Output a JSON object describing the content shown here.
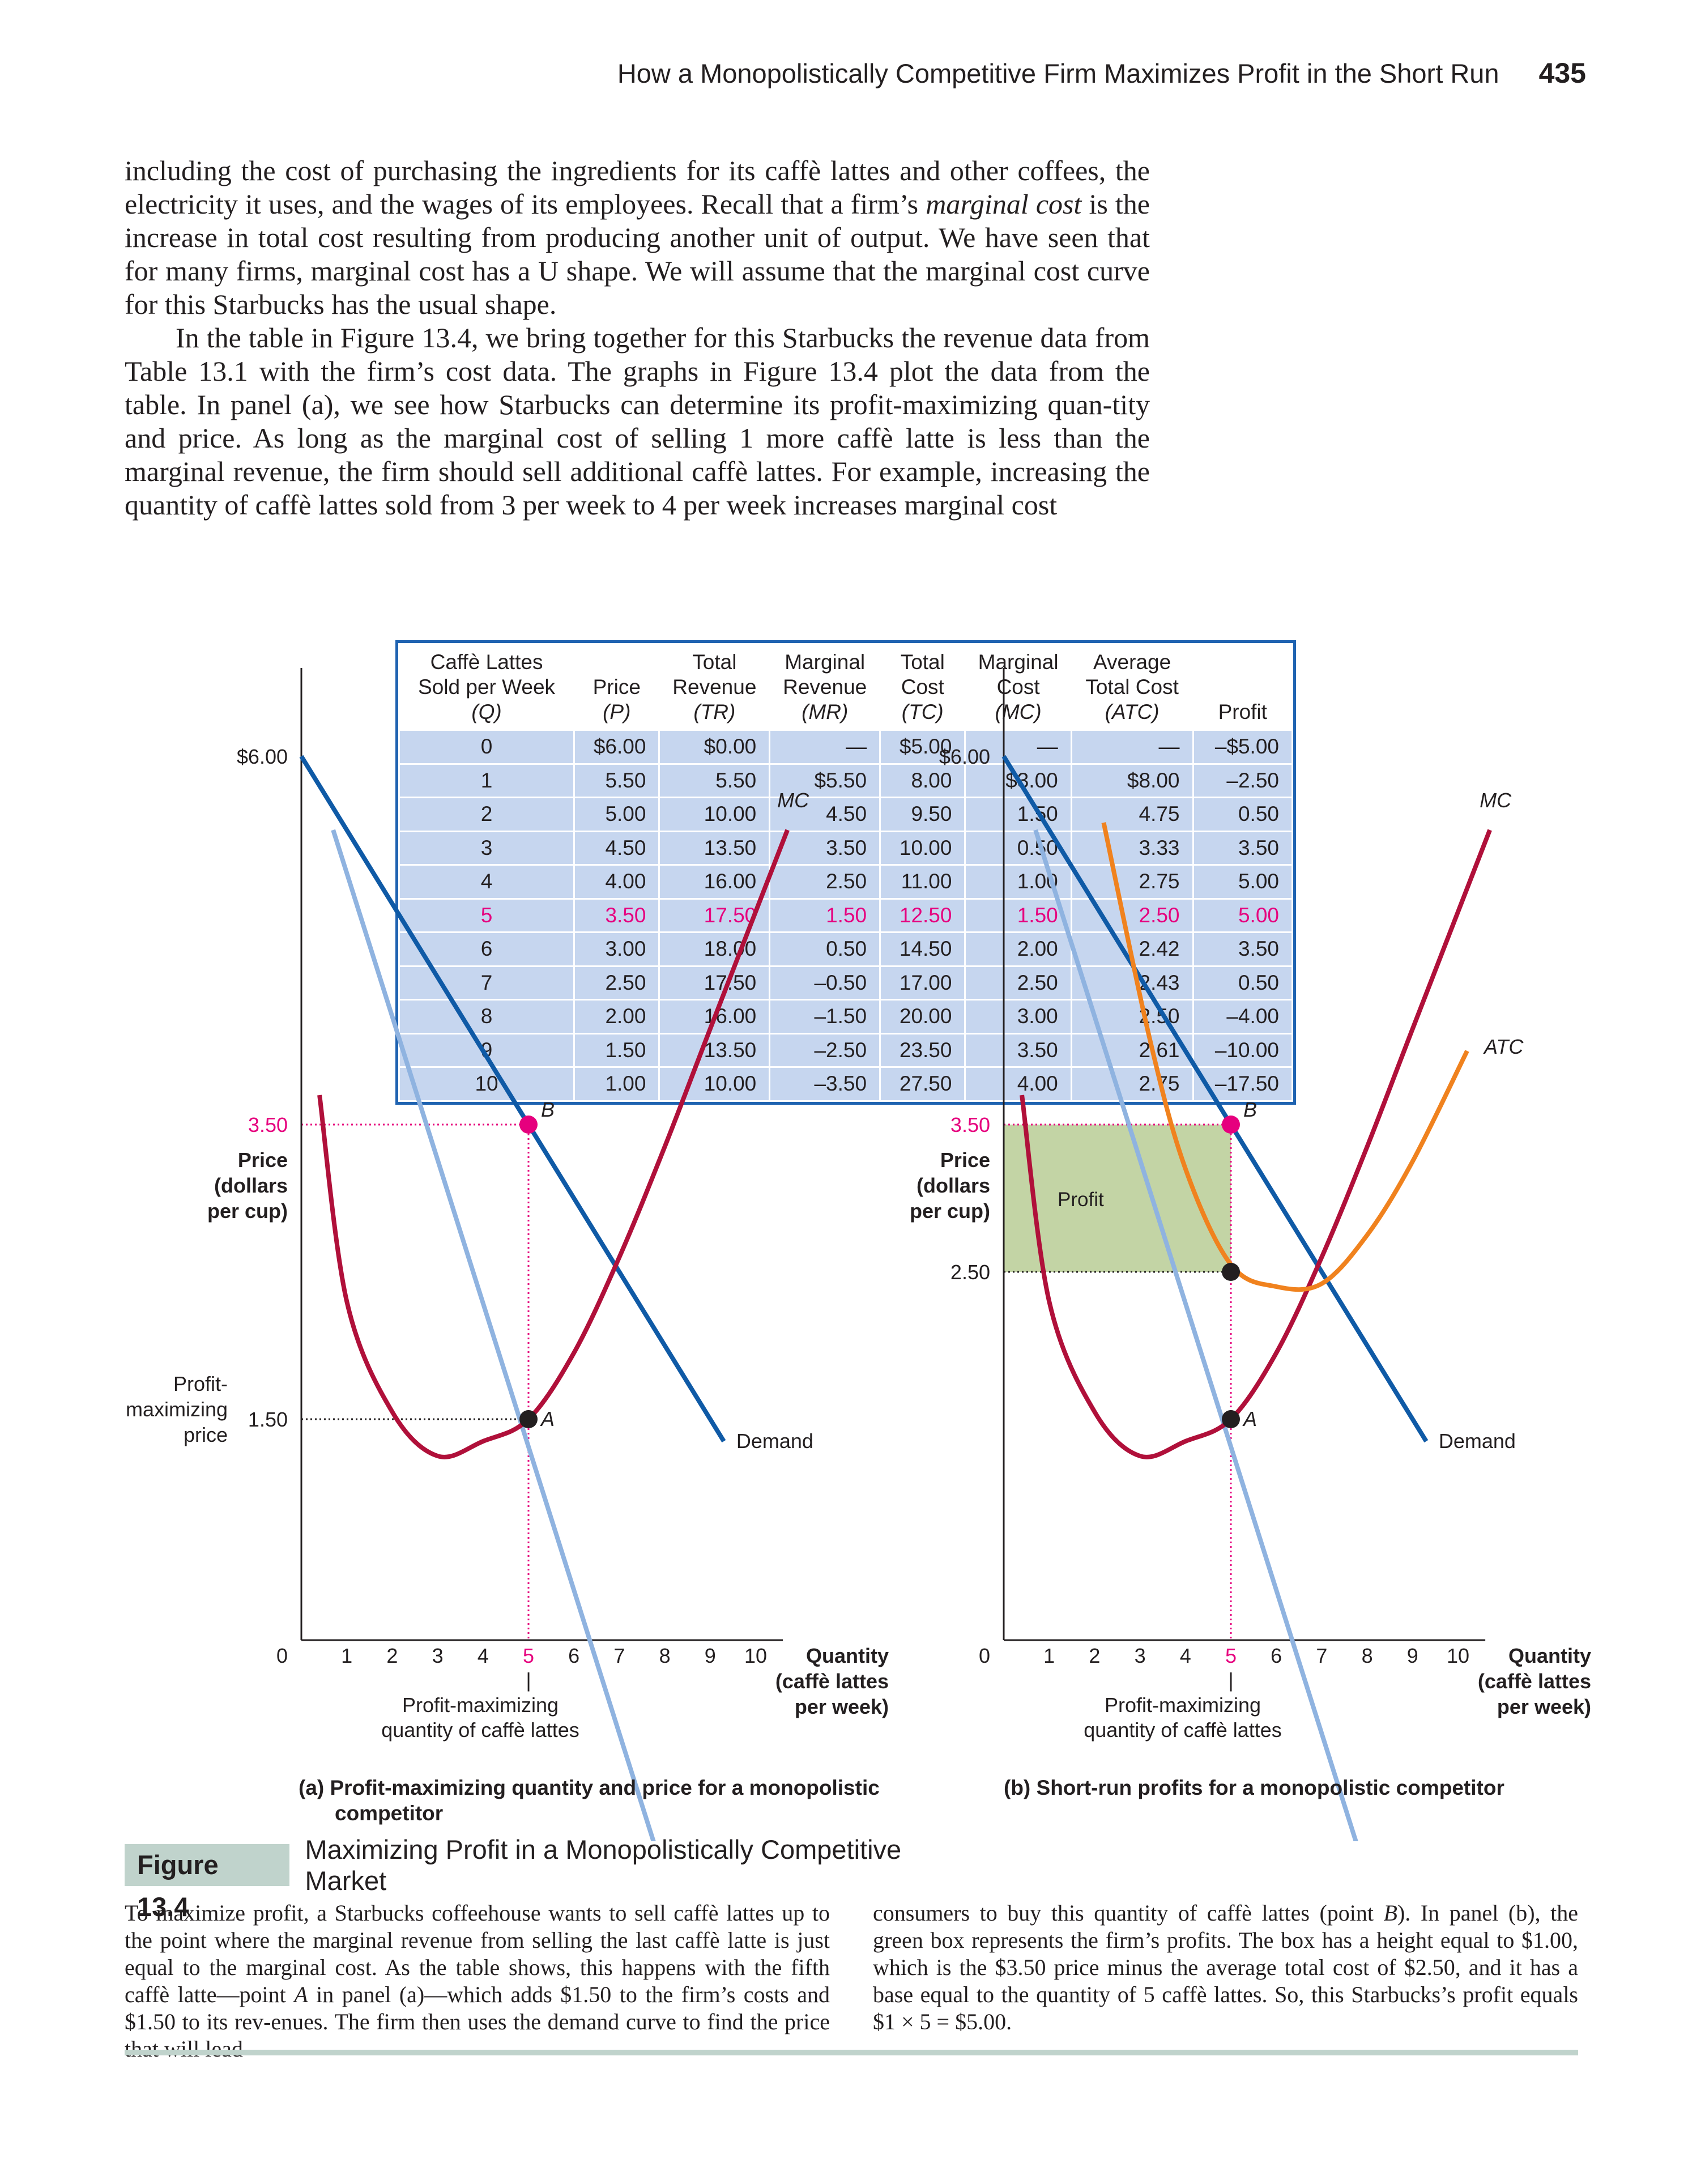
{
  "running_head": {
    "title": "How a Monopolistically Competitive Firm Maximizes Profit in the Short Run",
    "page": "435"
  },
  "body": {
    "p1_a": "including the cost of purchasing the ingredients for its caffè lattes and other coffees, the electricity it uses, and the wages of its employees. Recall that a firm’s ",
    "p1_em": "marginal cost",
    "p1_b": " is the increase in total cost resulting from producing another unit of output. We have seen that for many firms, marginal cost has a U shape. We will assume that the marginal cost curve for this Starbucks has the usual shape.",
    "p2": "In the table in Figure 13.4, we bring together for this Starbucks the revenue data from Table 13.1 with the firm’s cost data. The graphs in Figure 13.4 plot the data from the table. In panel (a), we see how Starbucks can determine its profit-maximizing quan-tity and price. As long as the marginal cost of selling 1 more caffè latte is less than the marginal revenue, the firm should sell additional caffè lattes. For example, increasing the quantity of caffè lattes sold from 3 per week to 4 per week increases marginal cost"
  },
  "table": {
    "headers": [
      [
        "Caffè Lattes",
        "Sold per Week",
        "(Q)"
      ],
      [
        "",
        "Price",
        "(P)"
      ],
      [
        "Total",
        "Revenue",
        "(TR)"
      ],
      [
        "Marginal",
        "Revenue",
        "(MR)"
      ],
      [
        "Total",
        "Cost",
        "(TC)"
      ],
      [
        "Marginal",
        "Cost",
        "(MC)"
      ],
      [
        "Average",
        "Total Cost",
        "(ATC)"
      ],
      [
        "",
        "",
        "Profit"
      ]
    ],
    "rows": [
      [
        "0",
        "$6.00",
        "$0.00",
        "—",
        "$5.00",
        "—",
        "—",
        "–$5.00"
      ],
      [
        "1",
        "5.50",
        "5.50",
        "$5.50",
        "8.00",
        "$3.00",
        "$8.00",
        "–2.50"
      ],
      [
        "2",
        "5.00",
        "10.00",
        "4.50",
        "9.50",
        "1.50",
        "4.75",
        "0.50"
      ],
      [
        "3",
        "4.50",
        "13.50",
        "3.50",
        "10.00",
        "0.50",
        "3.33",
        "3.50"
      ],
      [
        "4",
        "4.00",
        "16.00",
        "2.50",
        "11.00",
        "1.00",
        "2.75",
        "5.00"
      ],
      [
        "5",
        "3.50",
        "17.50",
        "1.50",
        "12.50",
        "1.50",
        "2.50",
        "5.00"
      ],
      [
        "6",
        "3.00",
        "18.00",
        "0.50",
        "14.50",
        "2.00",
        "2.42",
        "3.50"
      ],
      [
        "7",
        "2.50",
        "17.50",
        "–0.50",
        "17.00",
        "2.50",
        "2.43",
        "0.50"
      ],
      [
        "8",
        "2.00",
        "16.00",
        "–1.50",
        "20.00",
        "3.00",
        "2.50",
        "–4.00"
      ],
      [
        "9",
        "1.50",
        "13.50",
        "–2.50",
        "23.50",
        "3.50",
        "2.61",
        "–10.00"
      ],
      [
        "10",
        "1.00",
        "10.00",
        "–3.50",
        "27.50",
        "4.00",
        "2.75",
        "–17.50"
      ]
    ],
    "highlight_row": 5,
    "highlight_color": "#e6007e"
  },
  "chart_data": [
    {
      "type": "line",
      "panel": "a",
      "title": "(a) Profit-maximizing quantity and price for a monopolistic",
      "title_line2": "competitor",
      "ylabel": [
        "Price",
        "(dollars",
        "per cup)"
      ],
      "xlabel": [
        "Quantity",
        "(caffè lattes",
        "per week)"
      ],
      "xlim": [
        0,
        10
      ],
      "ylim": [
        0,
        6
      ],
      "x_ticks": [
        "1",
        "2",
        "3",
        "4",
        "5",
        "6",
        "7",
        "8",
        "9",
        "10"
      ],
      "origin_label": "0",
      "y_ticks": {
        "top": "$6.00",
        "p": "3.50",
        "mc": "1.50"
      },
      "y_side_label": [
        "Profit-",
        "maximizing",
        "price"
      ],
      "series": [
        {
          "name": "Demand",
          "color": "#0f5aa6",
          "x": [
            0,
            9.3
          ],
          "y": [
            6.0,
            1.35
          ]
        },
        {
          "name": "MR",
          "color": "#8fb3e0",
          "x": [
            0.7,
            8.3
          ],
          "y": [
            5.5,
            -1.9
          ]
        },
        {
          "name": "MC",
          "color": "#b0103a",
          "x": [
            0.4,
            1,
            2,
            3,
            4,
            5,
            6,
            7,
            8,
            9,
            10.7
          ],
          "y": [
            3.7,
            2.3,
            1.55,
            1.25,
            1.35,
            1.5,
            1.95,
            2.6,
            3.35,
            4.15,
            5.5
          ]
        }
      ],
      "points": [
        {
          "label": "B",
          "x": 5,
          "y": 3.5,
          "color": "#e6007e"
        },
        {
          "label": "A",
          "x": 5,
          "y": 1.5,
          "color": "#231f20"
        }
      ],
      "annotations": {
        "highlight_x": "5",
        "q_note": [
          "|",
          "Profit-maximizing",
          "quantity of caffè lattes"
        ]
      }
    },
    {
      "type": "line",
      "panel": "b",
      "title": "(b) Short-run profits for a monopolistic competitor",
      "ylabel": [
        "Price",
        "(dollars",
        "per cup)"
      ],
      "xlabel": [
        "Quantity",
        "(caffè lattes",
        "per week)"
      ],
      "xlim": [
        0,
        10
      ],
      "ylim": [
        0,
        6
      ],
      "x_ticks": [
        "1",
        "2",
        "3",
        "4",
        "5",
        "6",
        "7",
        "8",
        "9",
        "10"
      ],
      "origin_label": "0",
      "y_ticks": {
        "top": "$6.00",
        "p": "3.50",
        "atc": "2.50"
      },
      "profit_box": {
        "label": "Profit",
        "x": [
          0,
          5
        ],
        "y": [
          2.5,
          3.5
        ],
        "color": "#c3d4a5"
      },
      "series": [
        {
          "name": "Demand",
          "color": "#0f5aa6",
          "x": [
            0,
            9.3
          ],
          "y": [
            6.0,
            1.35
          ]
        },
        {
          "name": "MR",
          "color": "#8fb3e0",
          "x": [
            0.7,
            8.3
          ],
          "y": [
            5.5,
            -1.9
          ]
        },
        {
          "name": "MC",
          "color": "#b0103a",
          "x": [
            0.4,
            1,
            2,
            3,
            4,
            5,
            6,
            7,
            8,
            9,
            10.7
          ],
          "y": [
            3.7,
            2.3,
            1.55,
            1.25,
            1.35,
            1.5,
            1.95,
            2.6,
            3.35,
            4.15,
            5.5
          ]
        },
        {
          "name": "ATC",
          "color": "#f0821e",
          "x": [
            2.2,
            3.2,
            4.0,
            5.0,
            6.0,
            7.0,
            8.0,
            9.0,
            10.2
          ],
          "y": [
            5.55,
            4.1,
            3.2,
            2.55,
            2.4,
            2.42,
            2.75,
            3.25,
            4.0
          ]
        }
      ],
      "points": [
        {
          "label": "B",
          "x": 5,
          "y": 3.5,
          "color": "#e6007e"
        },
        {
          "label": "",
          "x": 5,
          "y": 2.5,
          "color": "#231f20"
        },
        {
          "label": "A",
          "x": 5,
          "y": 1.5,
          "color": "#231f20"
        }
      ],
      "annotations": {
        "highlight_x": "5",
        "q_note": [
          "|",
          "Profit-maximizing",
          "quantity of caffè lattes"
        ]
      }
    }
  ],
  "figure": {
    "label": "Figure 13.4",
    "title": "Maximizing Profit in a Monopolistically Competitive Market",
    "caption_left_a": "To maximize profit, a Starbucks coffeehouse wants to sell caffè lattes up to the point where the marginal revenue from selling the last caffè latte is just equal to the marginal cost. As the table shows, this happens with the fifth caffè latte—point ",
    "caption_left_em": "A",
    "caption_left_b": " in panel (a)—which adds $1.50 to the firm’s costs and $1.50 to its rev-enues. The firm then uses the demand curve to find the price that will lead",
    "caption_right_a": "consumers to buy this quantity of caffè lattes (point ",
    "caption_right_em": "B",
    "caption_right_b": "). In panel (b), the green box represents the firm’s profits. The box has a height equal to $1.00, which is the $3.50 price minus the average total cost of $2.50, and it has a base equal to the quantity of 5 caffè lattes. So, this Starbucks’s profit equals $1 × 5 = $5.00."
  },
  "colors": {
    "accent": "#e6007e",
    "table_border": "#1f63b1",
    "table_cell": "#c6d6ef",
    "caption_bar": "#c0d3cc"
  }
}
